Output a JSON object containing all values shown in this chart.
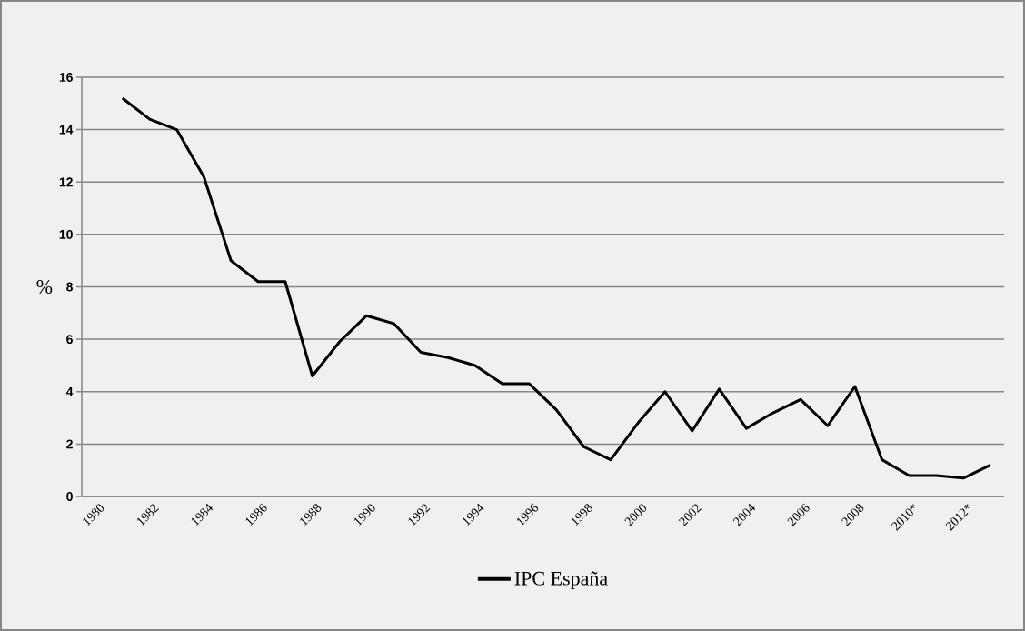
{
  "chart_data": {
    "type": "line",
    "ylabel": "%",
    "categories": [
      "1980",
      null,
      "1982",
      null,
      "1984",
      null,
      "1986",
      null,
      "1988",
      null,
      "1990",
      null,
      "1992",
      null,
      "1994",
      null,
      "1996",
      null,
      "1998",
      null,
      "2000",
      null,
      "2002",
      null,
      "2004",
      null,
      "2006",
      null,
      "2008",
      null,
      "2010*",
      null,
      "2012*",
      null
    ],
    "series": [
      {
        "name": "IPC España",
        "color": "#000000",
        "values": [
          null,
          15.2,
          14.4,
          14.0,
          12.2,
          9.0,
          8.2,
          8.2,
          4.6,
          5.9,
          6.9,
          6.6,
          5.5,
          5.3,
          5.0,
          4.3,
          4.3,
          3.3,
          1.9,
          1.4,
          2.8,
          4.0,
          2.5,
          4.1,
          2.6,
          3.2,
          3.7,
          2.7,
          4.2,
          1.4,
          0.8,
          0.8,
          0.7,
          1.2
        ]
      }
    ],
    "ylim": [
      0,
      16
    ],
    "yticks": [
      0,
      2,
      4,
      6,
      8,
      10,
      12,
      14,
      16
    ],
    "grid": "y",
    "legend": "bottom"
  }
}
